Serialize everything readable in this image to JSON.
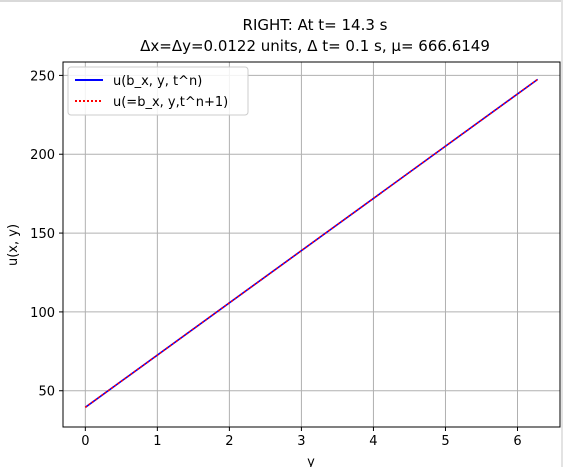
{
  "chart_data": {
    "type": "line",
    "title_line1": "RIGHT: At t= 14.3 s",
    "title_line2": "Δx=Δy=0.0122 units, Δ t= 0.1 s, μ= 666.6149",
    "xlabel": "y",
    "ylabel": "u(x, y)",
    "xlim": [
      -0.31,
      6.59
    ],
    "ylim": [
      27,
      258.5
    ],
    "xticks": [
      0,
      1,
      2,
      3,
      4,
      5,
      6
    ],
    "yticks": [
      50,
      100,
      150,
      200,
      250
    ],
    "grid": true,
    "legend_position": "upper-left",
    "series": [
      {
        "name": "u(b_x, y, t^n)",
        "color": "#0000ff",
        "style": "solid",
        "x": [
          0,
          6.28
        ],
        "y": [
          39.5,
          247.5
        ]
      },
      {
        "name": "u(=b_x, y,t^n+1)",
        "color": "#ff0000",
        "style": "dotted",
        "x": [
          0,
          6.28
        ],
        "y": [
          39.5,
          247.5
        ]
      }
    ]
  }
}
